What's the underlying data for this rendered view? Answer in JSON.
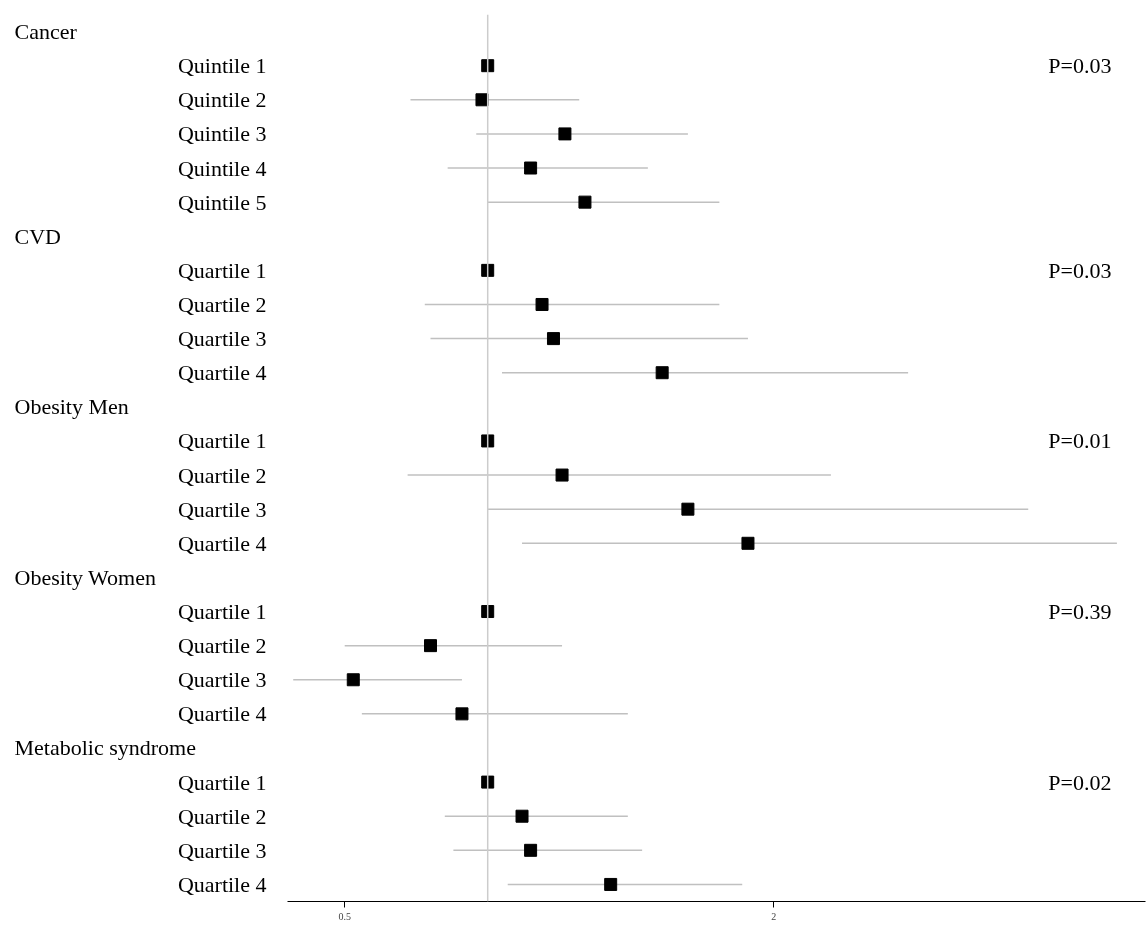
{
  "chart_data": {
    "type": "scatter",
    "orientation": "horizontal",
    "categories": [
      null,
      "Quintile 1",
      "Quintile 2",
      "Quintile 3",
      "Quintile 4",
      "Quintile 5",
      null,
      "Quartile 1",
      "Quartile 2",
      "Quartile 3",
      "Quartile 4",
      null,
      "Quartile 1",
      "Quartile 2",
      "Quartile 3",
      "Quartile 4",
      null,
      "Quartile 1",
      "Quartile 2",
      "Quartile 3",
      "Quartile 4",
      null,
      "Quartile 1",
      "Quartile 2",
      "Quartile 3",
      "Quartile 4"
    ],
    "values": [
      null,
      1.0,
      0.98,
      1.27,
      1.15,
      1.34,
      null,
      1.0,
      1.19,
      1.23,
      1.61,
      null,
      1.0,
      1.26,
      1.7,
      1.91,
      null,
      1.0,
      0.8,
      0.53,
      0.91,
      null,
      1.0,
      1.12,
      1.15,
      1.43
    ],
    "errors": [
      null,
      null,
      [
        0.73,
        1.32
      ],
      [
        0.96,
        1.7
      ],
      [
        0.86,
        1.56
      ],
      [
        1.0,
        1.81
      ],
      null,
      null,
      [
        0.78,
        1.81
      ],
      [
        0.8,
        1.91
      ],
      [
        1.05,
        2.47
      ],
      null,
      null,
      [
        0.72,
        2.2
      ],
      [
        1.0,
        2.89
      ],
      [
        1.12,
        3.2
      ],
      null,
      null,
      [
        0.5,
        1.26
      ],
      [
        0.32,
        0.91
      ],
      [
        0.56,
        1.49
      ],
      null,
      null,
      [
        0.85,
        1.49
      ],
      [
        0.88,
        1.54
      ],
      [
        1.07,
        1.89
      ]
    ],
    "color": "#000000",
    "marker": "square",
    "xlim": [
      0.3,
      3.3
    ],
    "xticks": [
      0.5,
      2
    ],
    "ref_lines": [
      {
        "axis": "x",
        "value": 1
      }
    ],
    "annotations": [
      "Cancer",
      "P=0.03",
      "CVD",
      "P=0.03",
      "Obesity Men",
      "P=0.01",
      "Obesity Women",
      "P=0.39",
      "Metabolic syndrome",
      "P=0.02"
    ],
    "grid": false
  }
}
